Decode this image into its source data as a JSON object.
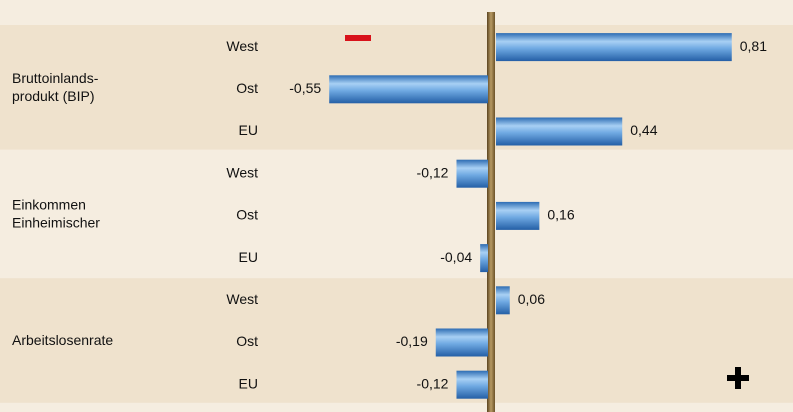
{
  "chart_data": {
    "type": "bar",
    "orientation": "horizontal",
    "groups": [
      {
        "name": [
          "Bruttoinlands-",
          "produkt (BIP)"
        ],
        "categories": [
          "West",
          "Ost",
          "EU"
        ],
        "values": [
          0.81,
          -0.55,
          0.44
        ],
        "value_labels": [
          "0,81",
          "-0,55",
          "0,44"
        ]
      },
      {
        "name": [
          "Einkommen",
          "Einheimischer"
        ],
        "categories": [
          "West",
          "Ost",
          "EU"
        ],
        "values": [
          -0.12,
          0.16,
          -0.04
        ],
        "value_labels": [
          "-0,12",
          "0,16",
          "-0,04"
        ]
      },
      {
        "name": [
          "Arbeitslosenrate"
        ],
        "categories": [
          "West",
          "Ost",
          "EU"
        ],
        "values": [
          0.06,
          -0.19,
          -0.12
        ],
        "value_labels": [
          "0,06",
          "-0,19",
          "-0,12"
        ]
      }
    ],
    "xlim": [
      -0.75,
      1.0
    ]
  }
}
